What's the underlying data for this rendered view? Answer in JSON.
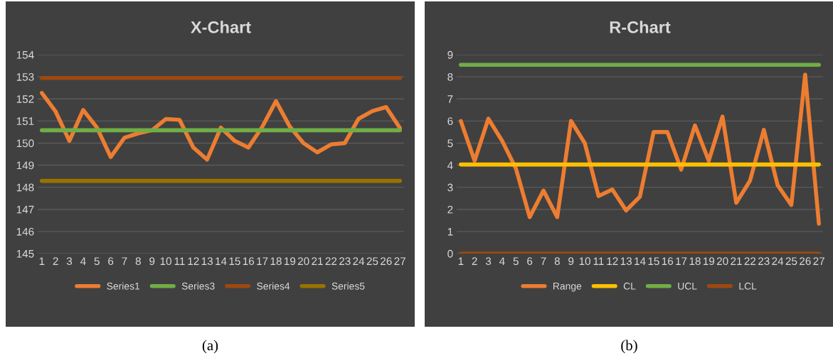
{
  "chart_data": [
    {
      "type": "line",
      "title": "X-Chart",
      "categories": [
        "1",
        "2",
        "3",
        "4",
        "5",
        "6",
        "7",
        "8",
        "9",
        "10",
        "11",
        "12",
        "13",
        "14",
        "15",
        "16",
        "17",
        "18",
        "19",
        "20",
        "21",
        "22",
        "23",
        "24",
        "25",
        "26",
        "27"
      ],
      "series": [
        {
          "name": "Series1",
          "color": "#ed7d31",
          "values": [
            152.27,
            151.43,
            150.1,
            151.5,
            150.7,
            149.37,
            150.24,
            150.44,
            150.58,
            151.09,
            151.05,
            149.8,
            149.25,
            150.7,
            150.1,
            149.8,
            150.73,
            151.9,
            150.75,
            150.0,
            149.58,
            149.94,
            150.0,
            151.1,
            151.45,
            151.63,
            150.68
          ]
        },
        {
          "name": "Series3",
          "color": "#70ad47",
          "values": [
            150.58,
            150.58,
            150.58,
            150.58,
            150.58,
            150.58,
            150.58,
            150.58,
            150.58,
            150.58,
            150.58,
            150.58,
            150.58,
            150.58,
            150.58,
            150.58,
            150.58,
            150.58,
            150.58,
            150.58,
            150.58,
            150.58,
            150.58,
            150.58,
            150.58,
            150.58,
            150.58
          ]
        },
        {
          "name": "Series4",
          "color": "#9e480e",
          "values": [
            152.95,
            152.95,
            152.95,
            152.95,
            152.95,
            152.95,
            152.95,
            152.95,
            152.95,
            152.95,
            152.95,
            152.95,
            152.95,
            152.95,
            152.95,
            152.95,
            152.95,
            152.95,
            152.95,
            152.95,
            152.95,
            152.95,
            152.95,
            152.95,
            152.95,
            152.95,
            152.95
          ]
        },
        {
          "name": "Series5",
          "color": "#997300",
          "values": [
            148.29,
            148.29,
            148.29,
            148.29,
            148.29,
            148.29,
            148.29,
            148.29,
            148.29,
            148.29,
            148.29,
            148.29,
            148.29,
            148.29,
            148.29,
            148.29,
            148.29,
            148.29,
            148.29,
            148.29,
            148.29,
            148.29,
            148.29,
            148.29,
            148.29,
            148.29,
            148.29
          ]
        }
      ],
      "ylim": [
        145,
        154
      ],
      "yticks": [
        145,
        146,
        147,
        148,
        149,
        150,
        151,
        152,
        153,
        154
      ],
      "grid": "y",
      "legend": "bottom",
      "annotations": [
        "(a)"
      ]
    },
    {
      "type": "line",
      "title": "R-Chart",
      "categories": [
        "1",
        "2",
        "3",
        "4",
        "5",
        "6",
        "7",
        "8",
        "9",
        "10",
        "11",
        "12",
        "13",
        "14",
        "15",
        "16",
        "17",
        "18",
        "19",
        "20",
        "21",
        "22",
        "23",
        "24",
        "25",
        "26",
        "27"
      ],
      "series": [
        {
          "name": "Range",
          "color": "#ed7d31",
          "values": [
            6.0,
            4.2,
            6.1,
            5.1,
            3.85,
            1.65,
            2.85,
            1.65,
            6.0,
            5.0,
            2.6,
            2.9,
            1.95,
            2.57,
            5.5,
            5.5,
            3.8,
            5.8,
            4.2,
            6.2,
            2.3,
            3.3,
            5.6,
            3.1,
            2.2,
            8.1,
            1.35
          ]
        },
        {
          "name": "CL",
          "color": "#ffc000",
          "values": [
            4.03,
            4.03,
            4.03,
            4.03,
            4.03,
            4.03,
            4.03,
            4.03,
            4.03,
            4.03,
            4.03,
            4.03,
            4.03,
            4.03,
            4.03,
            4.03,
            4.03,
            4.03,
            4.03,
            4.03,
            4.03,
            4.03,
            4.03,
            4.03,
            4.03,
            4.03,
            4.03
          ]
        },
        {
          "name": "UCL",
          "color": "#70ad47",
          "values": [
            8.54,
            8.54,
            8.54,
            8.54,
            8.54,
            8.54,
            8.54,
            8.54,
            8.54,
            8.54,
            8.54,
            8.54,
            8.54,
            8.54,
            8.54,
            8.54,
            8.54,
            8.54,
            8.54,
            8.54,
            8.54,
            8.54,
            8.54,
            8.54,
            8.54,
            8.54,
            8.54
          ]
        },
        {
          "name": "LCL",
          "color": "#9e480e",
          "values": [
            0,
            0,
            0,
            0,
            0,
            0,
            0,
            0,
            0,
            0,
            0,
            0,
            0,
            0,
            0,
            0,
            0,
            0,
            0,
            0,
            0,
            0,
            0,
            0,
            0,
            0,
            0
          ]
        }
      ],
      "ylim": [
        0,
        9
      ],
      "yticks": [
        0,
        1,
        2,
        3,
        4,
        5,
        6,
        7,
        8,
        9
      ],
      "grid": "y",
      "legend": "bottom",
      "annotations": [
        "(b)"
      ]
    }
  ]
}
